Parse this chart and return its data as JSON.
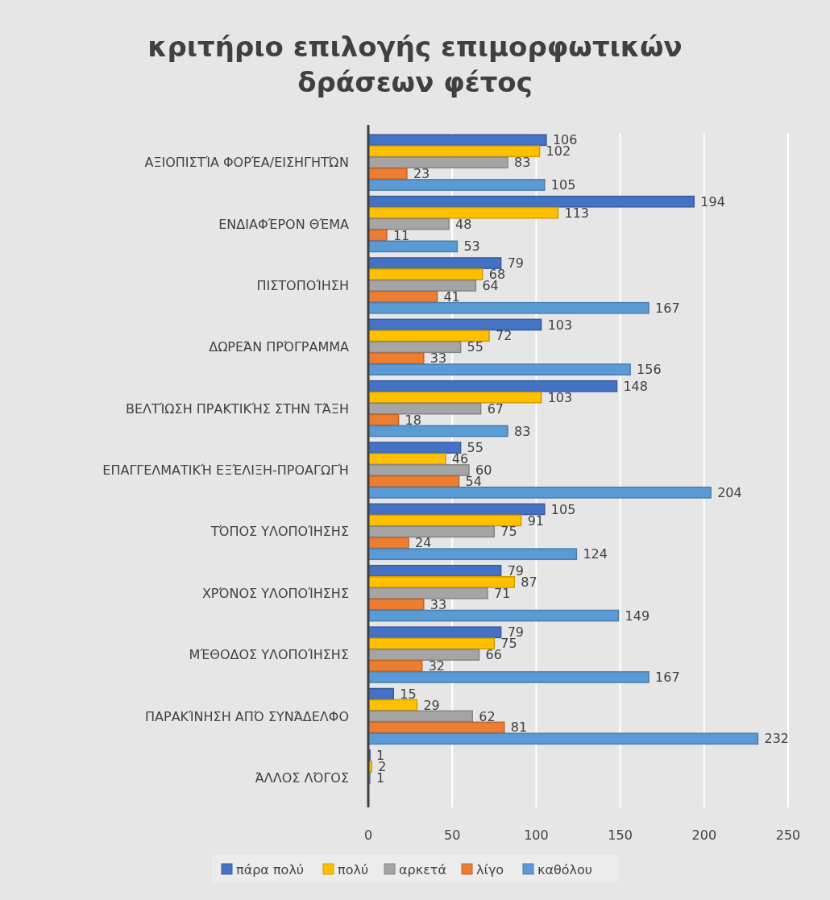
{
  "chart_data": {
    "type": "bar",
    "orientation": "horizontal",
    "title": "κριτήριο επιλογής επιμορφωτικών δράσεων φέτος",
    "categories": [
      "ΑΞΙΟΠΙΣΤΊΑ ΦΟΡΈΑ/ΕΙΣΗΓΗΤΏΝ",
      "ΕΝΔΙΑΦΈΡΟΝ ΘΈΜΑ",
      "ΠΙΣΤΟΠΟΊΗΣΗ",
      "ΔΩΡΕΆΝ ΠΡΌΓΡΑΜΜΑ",
      "ΒΕΛΤΊΩΣΗ ΠΡΑΚΤΙΚΉΣ ΣΤΗΝ ΤΆΞΗ",
      "ΕΠΑΓΓΕΛΜΑΤΙΚΉ ΕΞΈΛΙΞΗ-ΠΡΟΑΓΩΓΉ",
      "ΤΌΠΟΣ ΥΛΟΠΟΊΗΣΗΣ",
      "ΧΡΌΝΟΣ ΥΛΟΠΟΊΗΣΗΣ",
      "ΜΈΘΟΔΟΣ ΥΛΟΠΟΊΗΣΗΣ",
      "ΠΑΡΑΚΊΝΗΣΗ ΑΠΌ ΣΥΝΆΔΕΛΦΟ",
      "ΆΛΛΟΣ ΛΌΓΟΣ"
    ],
    "series": [
      {
        "name": "πάρα πολύ",
        "color": "#4472c4",
        "values": [
          106,
          194,
          79,
          103,
          148,
          55,
          105,
          79,
          79,
          15,
          1
        ]
      },
      {
        "name": "πολύ",
        "color": "#ffc000",
        "values": [
          102,
          113,
          68,
          72,
          103,
          46,
          91,
          87,
          75,
          29,
          2
        ]
      },
      {
        "name": "αρκετά",
        "color": "#a5a5a5",
        "values": [
          83,
          48,
          64,
          55,
          67,
          60,
          75,
          71,
          66,
          62,
          1
        ]
      },
      {
        "name": "λίγο",
        "color": "#ed7d31",
        "values": [
          23,
          11,
          41,
          33,
          18,
          54,
          24,
          33,
          32,
          81,
          null
        ]
      },
      {
        "name": "καθόλου",
        "color": "#5b9bd5",
        "values": [
          105,
          53,
          167,
          156,
          83,
          204,
          124,
          149,
          167,
          232,
          null
        ]
      }
    ],
    "xlim": [
      0,
      250
    ],
    "xticks": [
      0,
      50,
      100,
      150,
      200,
      250
    ],
    "grid": "x",
    "legend": "bottom",
    "data_labels": true
  }
}
